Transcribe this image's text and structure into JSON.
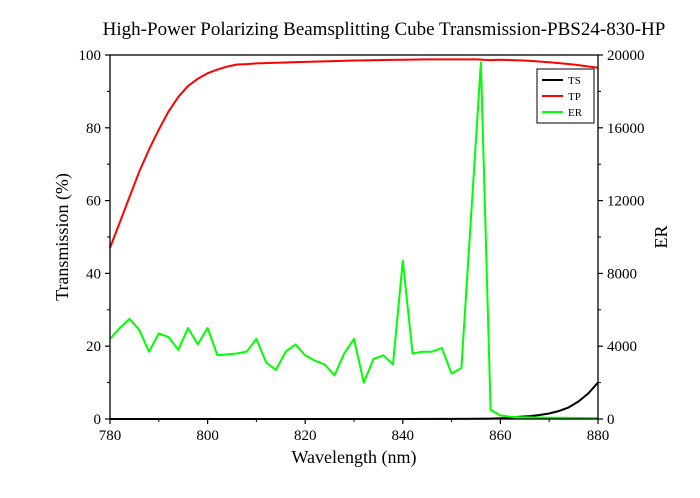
{
  "chart_data": {
    "type": "line",
    "title": "High-Power Polarizing Beamsplitting Cube Transmission-PBS24-830-HP",
    "xlabel": "Wavelength (nm)",
    "ylabel": "Transmission (%)",
    "y2label": "ER",
    "xlim": [
      780,
      880
    ],
    "ylim": [
      0,
      100
    ],
    "y2lim": [
      0,
      20000
    ],
    "x_ticks": [
      780,
      800,
      820,
      840,
      860,
      880
    ],
    "y_ticks": [
      0,
      20,
      40,
      60,
      80,
      100
    ],
    "y2_ticks": [
      0,
      4000,
      8000,
      12000,
      16000,
      20000
    ],
    "legend_position": "top-right",
    "grid": false,
    "series": [
      {
        "name": "TS",
        "axis": "left",
        "color": "#000000",
        "x": [
          780,
          790,
          800,
          810,
          820,
          830,
          840,
          850,
          855,
          858,
          860,
          862,
          864,
          866,
          868,
          870,
          872,
          874,
          876,
          878,
          880
        ],
        "values": [
          0.01,
          0.01,
          0.01,
          0.01,
          0.01,
          0.01,
          0.01,
          0.02,
          0.05,
          0.1,
          0.2,
          0.4,
          0.6,
          0.8,
          1.1,
          1.5,
          2.2,
          3.2,
          4.8,
          7.0,
          10.0
        ]
      },
      {
        "name": "TP",
        "axis": "left",
        "color": "#ff0000",
        "x": [
          780,
          782,
          784,
          786,
          788,
          790,
          792,
          794,
          796,
          798,
          800,
          802,
          804,
          806,
          808,
          810,
          815,
          820,
          825,
          830,
          835,
          840,
          845,
          850,
          855,
          858,
          860,
          865,
          870,
          875,
          880
        ],
        "values": [
          47,
          54,
          61,
          68,
          74,
          79.5,
          84.5,
          88.5,
          91.5,
          93.5,
          95,
          96,
          96.8,
          97.4,
          97.5,
          97.7,
          97.9,
          98.1,
          98.3,
          98.5,
          98.6,
          98.7,
          98.8,
          98.8,
          98.8,
          98.6,
          98.7,
          98.5,
          98.0,
          97.4,
          96.5
        ]
      },
      {
        "name": "ER",
        "axis": "right",
        "color": "#00ff00",
        "x": [
          780,
          782,
          784,
          786,
          788,
          790,
          792,
          794,
          796,
          798,
          800,
          802,
          806,
          808,
          810,
          812,
          814,
          816,
          818,
          820,
          822,
          824,
          826,
          828,
          830,
          832,
          834,
          836,
          838,
          840,
          842,
          844,
          846,
          848,
          850,
          852,
          856,
          858,
          860,
          862,
          864,
          866,
          868,
          870,
          872,
          874,
          876,
          878,
          880
        ],
        "values": [
          4400,
          5000,
          5500,
          4900,
          3700,
          4700,
          4500,
          3800,
          5000,
          4100,
          5000,
          3500,
          3600,
          3700,
          4400,
          3100,
          2700,
          3700,
          4100,
          3500,
          3200,
          3000,
          2400,
          3600,
          4400,
          2000,
          3300,
          3500,
          3000,
          8700,
          3600,
          3700,
          3700,
          3900,
          2500,
          2800,
          19600,
          500,
          200,
          120,
          100,
          90,
          80,
          70,
          65,
          60,
          55,
          50,
          50
        ]
      }
    ]
  }
}
